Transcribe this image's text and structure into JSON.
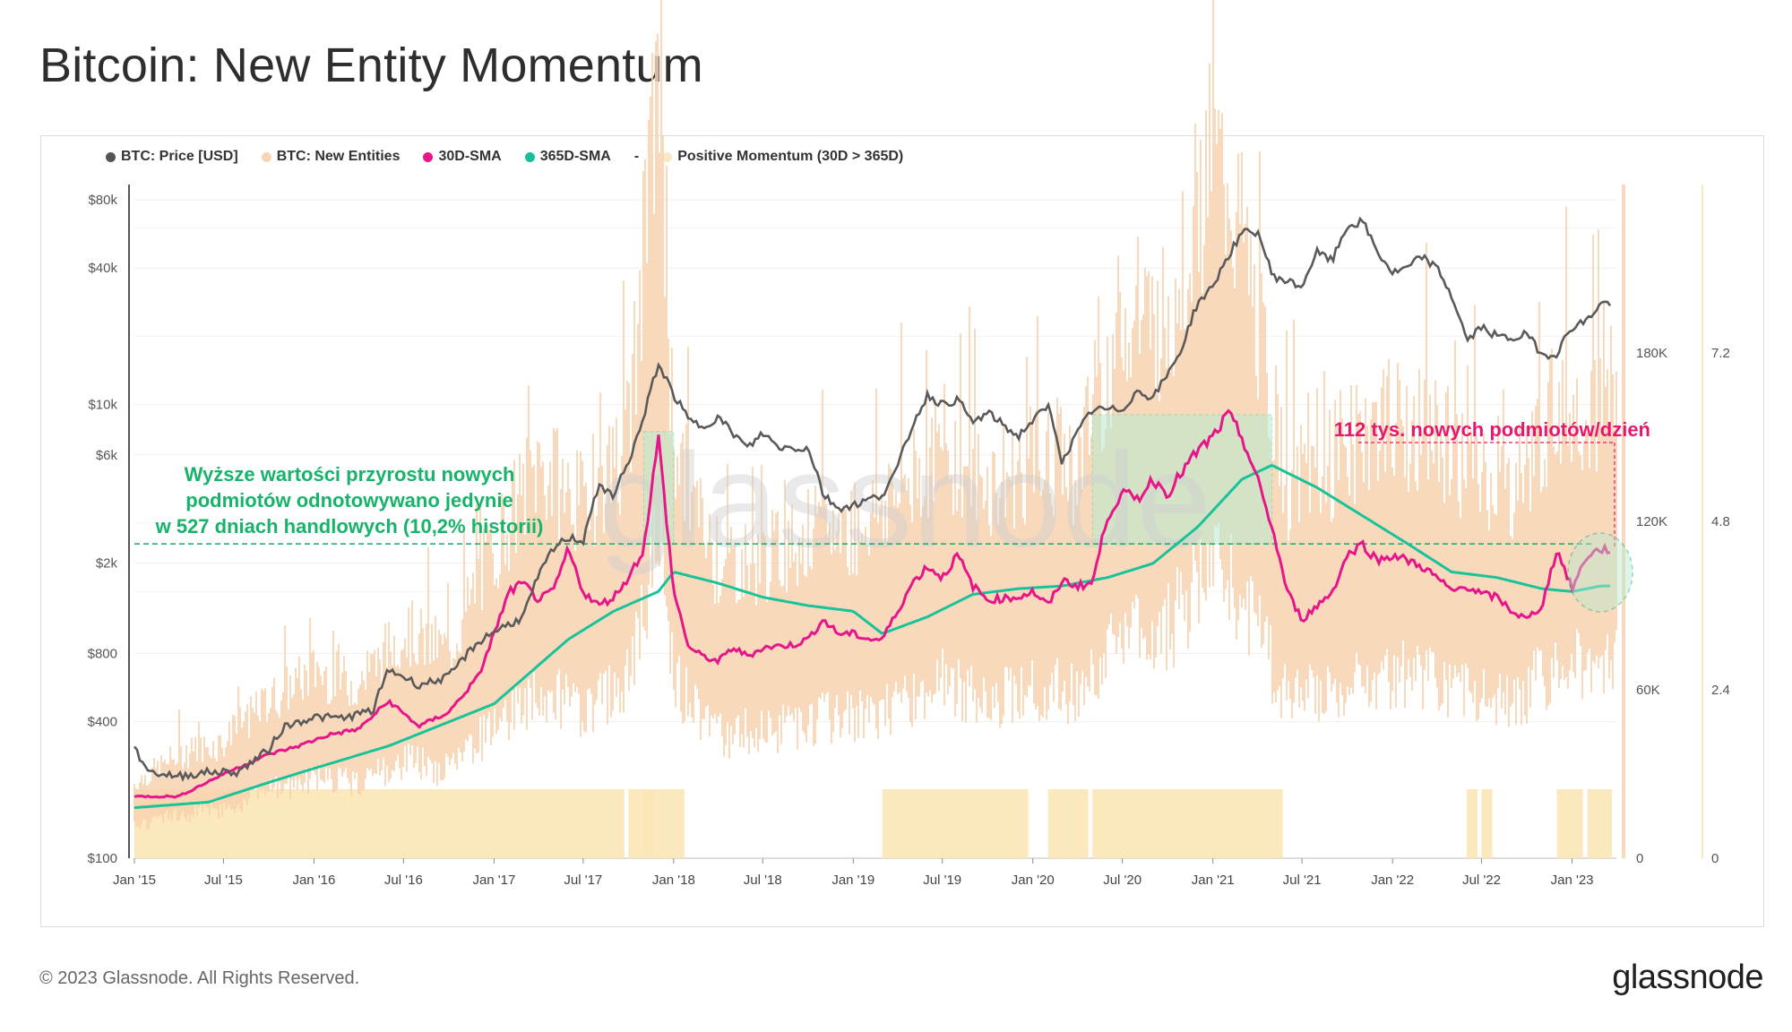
{
  "page": {
    "title": "Bitcoin: New Entity Momentum",
    "copyright": "© 2023 Glassnode. All Rights Reserved.",
    "brand": "glassnode",
    "watermark": "glassnode"
  },
  "legend": [
    {
      "label": "BTC: Price [USD]",
      "color": "#555555"
    },
    {
      "label": "BTC: New Entities",
      "color": "#f9d5b5"
    },
    {
      "label": "30D-SMA",
      "color": "#e6168a"
    },
    {
      "label": "365D-SMA",
      "color": "#15c199"
    },
    {
      "label": "-",
      "color": ""
    },
    {
      "label": "Positive Momentum (30D > 365D)",
      "color": "#fbe8c4"
    }
  ],
  "annotations": {
    "green_text": [
      "Wyższe wartości przyrostu nowych",
      "podmiotów odnotowywano jedynie",
      "w 527 dniach handlowych (10,2% historii)"
    ],
    "pink_text": "112 tys. nowych podmiotów/dzień"
  },
  "colors": {
    "price": "#5a5a5a",
    "entities": "#f9d3b0",
    "sma30": "#e6168a",
    "sma365": "#18c39a",
    "momentum": "#fbe5b6",
    "green_text": "#17b36b",
    "pink_text": "#e6186e"
  },
  "chart_data": {
    "type": "line",
    "x_ticks": [
      "Jan '15",
      "Jul '15",
      "Jan '16",
      "Jul '16",
      "Jan '17",
      "Jul '17",
      "Jan '18",
      "Jul '18",
      "Jan '19",
      "Jul '19",
      "Jan '20",
      "Jul '20",
      "Jan '21",
      "Jul '21",
      "Jan '22",
      "Jul '22",
      "Jan '23"
    ],
    "y_left_ticks": [
      "$80k",
      "$40k",
      "$10k",
      "$6k",
      "$2k",
      "$800",
      "$400",
      "$100"
    ],
    "y_right_ticks": [
      "180K",
      "120K",
      "60K",
      "0"
    ],
    "y_right2_ticks": [
      "7.2",
      "4.8",
      "2.4",
      "0"
    ],
    "y_left_scale": "log",
    "y_right_range": [
      0,
      240000
    ],
    "x_range": [
      "2015-01-01",
      "2023-04-01"
    ],
    "series": [
      {
        "name": "BTC: Price [USD]",
        "axis": "left",
        "points": [
          [
            "2015-01",
            300
          ],
          [
            "2015-02",
            240
          ],
          [
            "2015-04",
            230
          ],
          [
            "2015-06",
            240
          ],
          [
            "2015-08",
            240
          ],
          [
            "2015-10",
            300
          ],
          [
            "2015-11",
            380
          ],
          [
            "2016-01",
            420
          ],
          [
            "2016-03",
            415
          ],
          [
            "2016-05",
            450
          ],
          [
            "2016-06",
            680
          ],
          [
            "2016-08",
            580
          ],
          [
            "2016-10",
            630
          ],
          [
            "2016-12",
            900
          ],
          [
            "2017-01",
            1000
          ],
          [
            "2017-03",
            1150
          ],
          [
            "2017-05",
            2300
          ],
          [
            "2017-06",
            2600
          ],
          [
            "2017-07",
            2500
          ],
          [
            "2017-08",
            4300
          ],
          [
            "2017-09",
            4000
          ],
          [
            "2017-10",
            5500
          ],
          [
            "2017-11",
            8500
          ],
          [
            "2017-12",
            15000
          ],
          [
            "2018-01",
            11000
          ],
          [
            "2018-02",
            8500
          ],
          [
            "2018-03",
            8000
          ],
          [
            "2018-04",
            8800
          ],
          [
            "2018-05",
            7500
          ],
          [
            "2018-06",
            6400
          ],
          [
            "2018-07",
            7500
          ],
          [
            "2018-08",
            6500
          ],
          [
            "2018-10",
            6400
          ],
          [
            "2018-11",
            4000
          ],
          [
            "2018-12",
            3500
          ],
          [
            "2019-01",
            3600
          ],
          [
            "2019-03",
            4000
          ],
          [
            "2019-04",
            5200
          ],
          [
            "2019-05",
            8000
          ],
          [
            "2019-06",
            11000
          ],
          [
            "2019-07",
            10000
          ],
          [
            "2019-08",
            10500
          ],
          [
            "2019-09",
            8300
          ],
          [
            "2019-10",
            9200
          ],
          [
            "2019-12",
            7200
          ],
          [
            "2020-01",
            8500
          ],
          [
            "2020-02",
            9800
          ],
          [
            "2020-03",
            5500
          ],
          [
            "2020-04",
            7500
          ],
          [
            "2020-05",
            9500
          ],
          [
            "2020-07",
            9500
          ],
          [
            "2020-08",
            11500
          ],
          [
            "2020-09",
            10700
          ],
          [
            "2020-10",
            13500
          ],
          [
            "2020-11",
            18000
          ],
          [
            "2020-12",
            28000
          ],
          [
            "2021-01",
            33000
          ],
          [
            "2021-02",
            45000
          ],
          [
            "2021-03",
            57000
          ],
          [
            "2021-04",
            58000
          ],
          [
            "2021-05",
            37000
          ],
          [
            "2021-06",
            35000
          ],
          [
            "2021-07",
            33000
          ],
          [
            "2021-08",
            47000
          ],
          [
            "2021-09",
            43000
          ],
          [
            "2021-10",
            61000
          ],
          [
            "2021-11",
            64000
          ],
          [
            "2021-12",
            47000
          ],
          [
            "2022-01",
            38000
          ],
          [
            "2022-02",
            40000
          ],
          [
            "2022-03",
            45000
          ],
          [
            "2022-04",
            40000
          ],
          [
            "2022-05",
            30000
          ],
          [
            "2022-06",
            19000
          ],
          [
            "2022-07",
            22000
          ],
          [
            "2022-08",
            20000
          ],
          [
            "2022-09",
            19500
          ],
          [
            "2022-10",
            20500
          ],
          [
            "2022-11",
            16500
          ],
          [
            "2022-12",
            16800
          ],
          [
            "2023-01",
            22000
          ],
          [
            "2023-02",
            23500
          ],
          [
            "2023-03",
            28000
          ]
        ]
      },
      {
        "name": "30D-SMA",
        "axis": "right",
        "points": [
          [
            "2015-01",
            22000
          ],
          [
            "2015-04",
            22000
          ],
          [
            "2015-07",
            30000
          ],
          [
            "2015-10",
            37000
          ],
          [
            "2015-12",
            40000
          ],
          [
            "2016-02",
            44000
          ],
          [
            "2016-04",
            46000
          ],
          [
            "2016-06",
            56000
          ],
          [
            "2016-08",
            47000
          ],
          [
            "2016-10",
            52000
          ],
          [
            "2016-12",
            65000
          ],
          [
            "2017-01",
            80000
          ],
          [
            "2017-02",
            95000
          ],
          [
            "2017-03",
            98000
          ],
          [
            "2017-04",
            92000
          ],
          [
            "2017-05",
            95000
          ],
          [
            "2017-06",
            110000
          ],
          [
            "2017-07",
            95000
          ],
          [
            "2017-08",
            90000
          ],
          [
            "2017-09",
            93000
          ],
          [
            "2017-10",
            100000
          ],
          [
            "2017-11",
            110000
          ],
          [
            "2017-12",
            150000
          ],
          [
            "2018-01",
            95000
          ],
          [
            "2018-02",
            75000
          ],
          [
            "2018-03",
            72000
          ],
          [
            "2018-04",
            70000
          ],
          [
            "2018-05",
            75000
          ],
          [
            "2018-06",
            72000
          ],
          [
            "2018-07",
            75000
          ],
          [
            "2018-09",
            76000
          ],
          [
            "2018-10",
            78000
          ],
          [
            "2018-11",
            85000
          ],
          [
            "2018-12",
            80000
          ],
          [
            "2019-01",
            80000
          ],
          [
            "2019-02",
            78000
          ],
          [
            "2019-03",
            78000
          ],
          [
            "2019-04",
            88000
          ],
          [
            "2019-05",
            98000
          ],
          [
            "2019-06",
            104000
          ],
          [
            "2019-07",
            100000
          ],
          [
            "2019-08",
            108000
          ],
          [
            "2019-09",
            97000
          ],
          [
            "2019-10",
            92000
          ],
          [
            "2019-12",
            93000
          ],
          [
            "2020-01",
            95000
          ],
          [
            "2020-02",
            90000
          ],
          [
            "2020-03",
            99000
          ],
          [
            "2020-04",
            97000
          ],
          [
            "2020-05",
            98000
          ],
          [
            "2020-06",
            122000
          ],
          [
            "2020-07",
            130000
          ],
          [
            "2020-08",
            128000
          ],
          [
            "2020-09",
            135000
          ],
          [
            "2020-10",
            130000
          ],
          [
            "2020-11",
            138000
          ],
          [
            "2020-12",
            145000
          ],
          [
            "2021-01",
            150000
          ],
          [
            "2021-02",
            158000
          ],
          [
            "2021-03",
            150000
          ],
          [
            "2021-04",
            135000
          ],
          [
            "2021-05",
            118000
          ],
          [
            "2021-06",
            95000
          ],
          [
            "2021-07",
            85000
          ],
          [
            "2021-08",
            90000
          ],
          [
            "2021-09",
            95000
          ],
          [
            "2021-10",
            108000
          ],
          [
            "2021-11",
            112000
          ],
          [
            "2021-12",
            106000
          ],
          [
            "2022-01",
            108000
          ],
          [
            "2022-02",
            106000
          ],
          [
            "2022-03",
            104000
          ],
          [
            "2022-04",
            100000
          ],
          [
            "2022-05",
            95000
          ],
          [
            "2022-06",
            97000
          ],
          [
            "2022-07",
            94000
          ],
          [
            "2022-08",
            93000
          ],
          [
            "2022-09",
            88000
          ],
          [
            "2022-10",
            85000
          ],
          [
            "2022-11",
            90000
          ],
          [
            "2022-12",
            110000
          ],
          [
            "2023-01",
            96000
          ],
          [
            "2023-02",
            108000
          ],
          [
            "2023-03",
            110000
          ]
        ]
      },
      {
        "name": "365D-SMA",
        "axis": "right",
        "points": [
          [
            "2015-01",
            18000
          ],
          [
            "2015-06",
            20000
          ],
          [
            "2015-10",
            27000
          ],
          [
            "2016-01",
            32000
          ],
          [
            "2016-06",
            40000
          ],
          [
            "2017-01",
            55000
          ],
          [
            "2017-06",
            78000
          ],
          [
            "2017-09",
            88000
          ],
          [
            "2017-12",
            95000
          ],
          [
            "2018-01",
            102000
          ],
          [
            "2018-04",
            98000
          ],
          [
            "2018-07",
            93000
          ],
          [
            "2018-10",
            90000
          ],
          [
            "2019-01",
            88000
          ],
          [
            "2019-03",
            80000
          ],
          [
            "2019-06",
            86000
          ],
          [
            "2019-09",
            94000
          ],
          [
            "2019-12",
            96000
          ],
          [
            "2020-03",
            97000
          ],
          [
            "2020-06",
            100000
          ],
          [
            "2020-09",
            105000
          ],
          [
            "2020-12",
            118000
          ],
          [
            "2021-03",
            135000
          ],
          [
            "2021-05",
            140000
          ],
          [
            "2021-08",
            132000
          ],
          [
            "2021-11",
            122000
          ],
          [
            "2022-02",
            112000
          ],
          [
            "2022-05",
            102000
          ],
          [
            "2022-08",
            100000
          ],
          [
            "2022-11",
            96000
          ],
          [
            "2023-01",
            95000
          ],
          [
            "2023-03",
            97000
          ]
        ]
      },
      {
        "name": "BTC: New Entities",
        "axis": "right",
        "points": [
          [
            "2015-01",
            18000
          ],
          [
            "2015-04",
            25000
          ],
          [
            "2015-07",
            28000
          ],
          [
            "2015-10",
            38000
          ],
          [
            "2016-01",
            45000
          ],
          [
            "2016-04",
            42000
          ],
          [
            "2016-07",
            55000
          ],
          [
            "2016-10",
            50000
          ],
          [
            "2017-01",
            75000
          ],
          [
            "2017-04",
            95000
          ],
          [
            "2017-07",
            85000
          ],
          [
            "2017-10",
            100000
          ],
          [
            "2017-12",
            190000
          ],
          [
            "2018-01",
            100000
          ],
          [
            "2018-04",
            70000
          ],
          [
            "2018-07",
            72000
          ],
          [
            "2018-10",
            78000
          ],
          [
            "2019-01",
            80000
          ],
          [
            "2019-04",
            88000
          ],
          [
            "2019-07",
            100000
          ],
          [
            "2019-10",
            90000
          ],
          [
            "2020-01",
            95000
          ],
          [
            "2020-04",
            95000
          ],
          [
            "2020-07",
            130000
          ],
          [
            "2020-10",
            130000
          ],
          [
            "2021-01",
            170000
          ],
          [
            "2021-03",
            150000
          ],
          [
            "2021-06",
            90000
          ],
          [
            "2021-09",
            95000
          ],
          [
            "2021-12",
            105000
          ],
          [
            "2022-03",
            104000
          ],
          [
            "2022-06",
            95000
          ],
          [
            "2022-09",
            88000
          ],
          [
            "2022-12",
            110000
          ],
          [
            "2023-03",
            110000
          ]
        ]
      }
    ],
    "momentum_periods": [
      [
        "2015-01",
        "2017-09"
      ],
      [
        "2017-10",
        "2017-11"
      ],
      [
        "2017-11",
        "2018-01"
      ],
      [
        "2019-03",
        "2019-12"
      ],
      [
        "2020-02",
        "2020-04"
      ],
      [
        "2020-05",
        "2021-05"
      ],
      [
        "2022-06",
        "2022-06"
      ],
      [
        "2022-07",
        "2022-07"
      ],
      [
        "2022-12",
        "2023-01"
      ],
      [
        "2023-02",
        "2023-03"
      ]
    ],
    "threshold": 112000,
    "highlight_zones": [
      [
        "2017-11",
        "2018-01",
        112000,
        152000
      ],
      [
        "2020-05",
        "2021-05",
        112000,
        158000
      ]
    ]
  }
}
